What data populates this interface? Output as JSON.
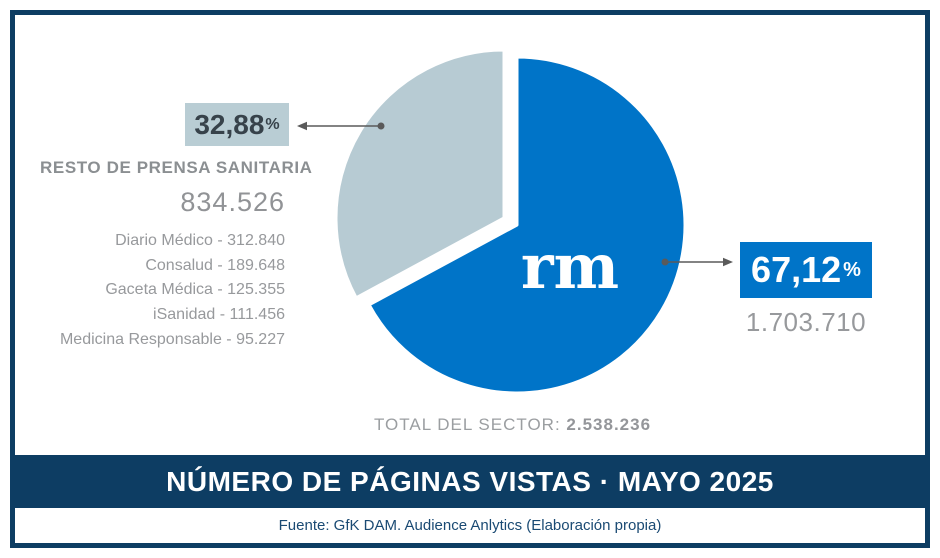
{
  "chart_data": {
    "type": "pie",
    "title": "NÚMERO DE PÁGINAS VISTAS · MAYO 2025",
    "start_angle_deg": 0,
    "legend_position": "none",
    "exploded_slice": "RESTO DE PRENSA SANITARIA",
    "slices": [
      {
        "name": "rm",
        "percent": 67.12,
        "percent_label": "67,12",
        "value": 1703710,
        "value_label": "1.703.710",
        "color": "#0074c8"
      },
      {
        "name": "RESTO DE PRENSA SANITARIA",
        "percent": 32.88,
        "percent_label": "32,88",
        "value": 834526,
        "value_label": "834.526",
        "color": "#b7cbd3"
      }
    ],
    "breakdown_of_resto": [
      {
        "name": "Diario Médico",
        "value": 312840
      },
      {
        "name": "Consalud",
        "value": 189648
      },
      {
        "name": "Gaceta Médica",
        "value": 125355
      },
      {
        "name": "iSanidad",
        "value": 111456
      },
      {
        "name": "Medicina Responsable",
        "value": 95227
      }
    ],
    "total": {
      "label": "TOTAL DEL SECTOR:",
      "value": 2538236,
      "value_label": "2.538.236"
    }
  },
  "colors": {
    "navy": "#0d3d63",
    "blue": "#0074c8",
    "gray_slice": "#b7cbd3"
  },
  "pie": {
    "logo": "rm"
  },
  "left": {
    "percent_label": "32,88",
    "percent_sign": "%",
    "heading": "RESTO DE PRENSA SANITARIA",
    "value": "834.526",
    "items": [
      "Diario Médico - 312.840",
      "Consalud - 189.648",
      "Gaceta Médica - 125.355",
      "iSanidad - 111.456",
      "Medicina Responsable - 95.227"
    ]
  },
  "right": {
    "percent_label": "67,12",
    "percent_sign": "%",
    "value": "1.703.710"
  },
  "total": {
    "label": "TOTAL DEL SECTOR:",
    "value": "2.538.236"
  },
  "banner": {
    "title": "NÚMERO DE PÁGINAS VISTAS · MAYO 2025"
  },
  "source": {
    "text": "Fuente: GfK DAM. Audience Anlytics (Elaboración propia)"
  }
}
